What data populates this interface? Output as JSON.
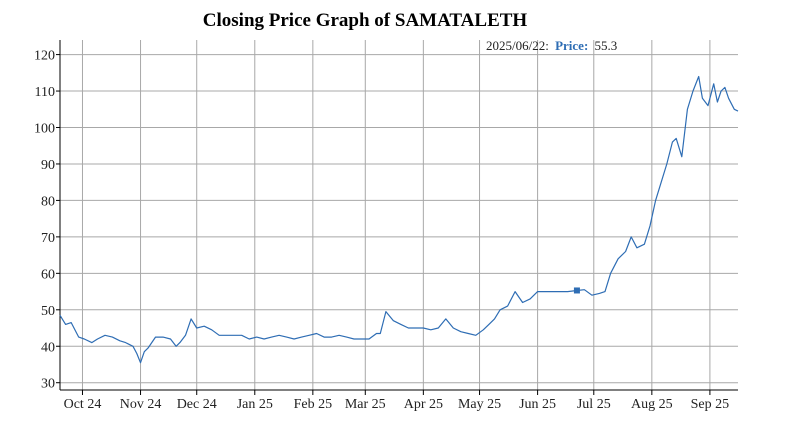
{
  "chart_data": {
    "type": "line",
    "title": "Closing Price Graph of SAMATALETH",
    "xlabel": "",
    "ylabel": "",
    "ylim": [
      28,
      124
    ],
    "yticks": [
      30,
      40,
      50,
      60,
      70,
      80,
      90,
      100,
      110,
      120
    ],
    "x_tick_labels": [
      "Oct 24",
      "Nov 24",
      "Dec 24",
      "Jan 25",
      "Feb 25",
      "Mar 25",
      "Apr 25",
      "May 25",
      "Jun 25",
      "Jul 25",
      "Aug 25",
      "Sep 25"
    ],
    "x_tick_dates": [
      "2024-10-01",
      "2024-11-01",
      "2024-12-01",
      "2025-01-01",
      "2025-02-01",
      "2025-03-01",
      "2025-04-01",
      "2025-05-01",
      "2025-06-01",
      "2025-07-01",
      "2025-08-01",
      "2025-09-01"
    ],
    "xlim": [
      "2024-09-19",
      "2025-09-16"
    ],
    "grid": true,
    "line_color": "#2e6db4",
    "series": [
      {
        "dates": [
          "2024-09-19",
          "2024-09-22",
          "2024-09-25",
          "2024-09-29",
          "2024-10-02",
          "2024-10-06",
          "2024-10-09",
          "2024-10-13",
          "2024-10-17",
          "2024-10-21",
          "2024-10-24",
          "2024-10-28",
          "2024-10-30",
          "2024-11-01",
          "2024-11-03",
          "2024-11-05",
          "2024-11-09",
          "2024-11-13",
          "2024-11-17",
          "2024-11-20",
          "2024-11-22",
          "2024-11-25",
          "2024-11-28",
          "2024-12-01",
          "2024-12-05",
          "2024-12-09",
          "2024-12-13",
          "2024-12-17",
          "2024-12-21",
          "2024-12-25",
          "2024-12-29",
          "2025-01-02",
          "2025-01-06",
          "2025-01-10",
          "2025-01-14",
          "2025-01-18",
          "2025-01-22",
          "2025-01-26",
          "2025-01-30",
          "2025-02-03",
          "2025-02-07",
          "2025-02-11",
          "2025-02-15",
          "2025-02-19",
          "2025-02-23",
          "2025-02-27",
          "2025-03-03",
          "2025-03-07",
          "2025-03-09",
          "2025-03-12",
          "2025-03-16",
          "2025-03-20",
          "2025-03-24",
          "2025-03-28",
          "2025-04-01",
          "2025-04-05",
          "2025-04-09",
          "2025-04-13",
          "2025-04-17",
          "2025-04-21",
          "2025-04-25",
          "2025-04-29",
          "2025-05-03",
          "2025-05-06",
          "2025-05-09",
          "2025-05-12",
          "2025-05-16",
          "2025-05-20",
          "2025-05-24",
          "2025-05-28",
          "2025-06-01",
          "2025-06-05",
          "2025-06-09",
          "2025-06-13",
          "2025-06-17",
          "2025-06-22",
          "2025-06-26",
          "2025-06-30",
          "2025-07-04",
          "2025-07-07",
          "2025-07-10",
          "2025-07-14",
          "2025-07-18",
          "2025-07-21",
          "2025-07-24",
          "2025-07-28",
          "2025-07-31",
          "2025-08-03",
          "2025-08-06",
          "2025-08-09",
          "2025-08-12",
          "2025-08-14",
          "2025-08-17",
          "2025-08-20",
          "2025-08-23",
          "2025-08-26",
          "2025-08-28",
          "2025-08-31",
          "2025-09-03",
          "2025-09-05",
          "2025-09-07",
          "2025-09-09",
          "2025-09-11",
          "2025-09-14",
          "2025-09-16"
        ],
        "values": [
          48.5,
          46.0,
          46.5,
          42.5,
          42.0,
          41.0,
          42.0,
          43.0,
          42.5,
          41.5,
          41.0,
          40.0,
          38.0,
          35.5,
          38.5,
          39.5,
          42.5,
          42.5,
          42.0,
          40.0,
          41.0,
          43.0,
          47.5,
          45.0,
          45.5,
          44.5,
          43.0,
          43.0,
          43.0,
          43.0,
          42.0,
          42.5,
          42.0,
          42.5,
          43.0,
          42.5,
          42.0,
          42.5,
          43.0,
          43.5,
          42.5,
          42.5,
          43.0,
          42.5,
          42.0,
          42.0,
          42.0,
          43.5,
          43.5,
          49.5,
          47.0,
          46.0,
          45.0,
          45.0,
          45.0,
          44.5,
          45.0,
          47.5,
          45.0,
          44.0,
          43.5,
          43.0,
          44.5,
          46.0,
          47.5,
          50.0,
          51.0,
          55.0,
          52.0,
          53.0,
          55.0,
          55.0,
          55.0,
          55.0,
          55.0,
          55.3,
          55.5,
          54.0,
          54.5,
          55.0,
          60.0,
          64.0,
          66.0,
          70.0,
          67.0,
          68.0,
          73.0,
          80.0,
          85.0,
          90.0,
          96.0,
          97.0,
          92.0,
          105.0,
          110.0,
          114.0,
          108.0,
          106.0,
          112.0,
          107.0,
          110.0,
          111.0,
          108.0,
          105.0,
          104.5
        ]
      }
    ],
    "tooltip": {
      "date": "2025/06/22",
      "label": "Price",
      "value": "55.3"
    }
  },
  "tooltip_text": {
    "date": "2025/06/22:",
    "label": "Price:",
    "value": "55.3"
  }
}
